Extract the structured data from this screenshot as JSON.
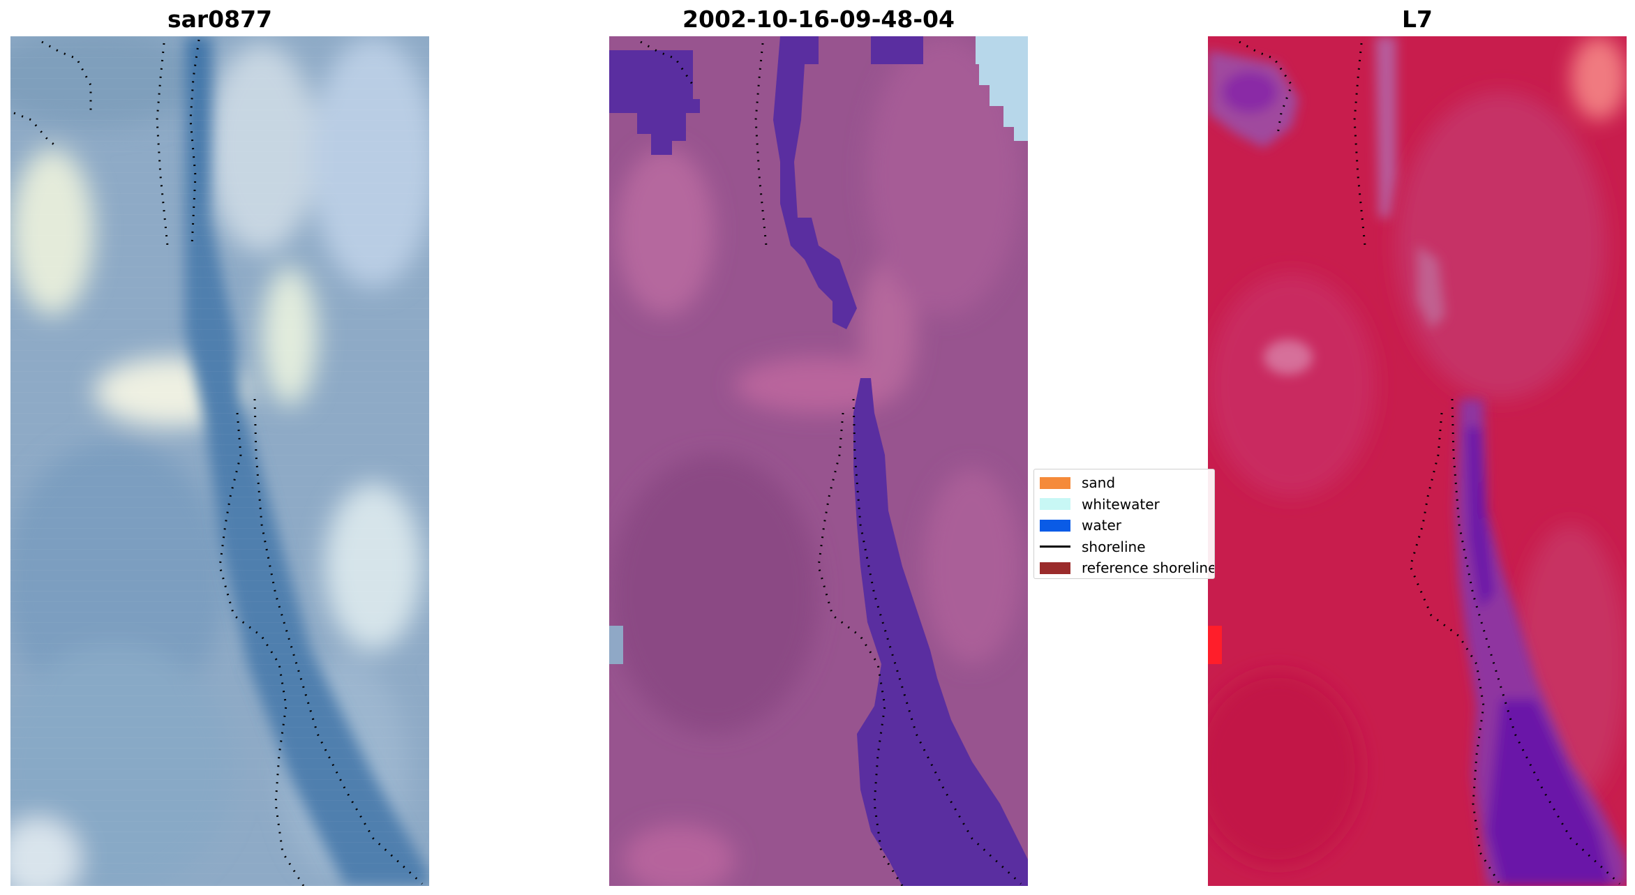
{
  "panels": [
    {
      "title": "sar0877",
      "kind": "rgb",
      "base": "#8faccb"
    },
    {
      "title": "2002-10-16-09-48-04",
      "kind": "classified",
      "base": "#9a5590"
    },
    {
      "title": "L7",
      "kind": "mndwi",
      "base": "#c81e4e"
    }
  ],
  "legend": {
    "items": [
      {
        "label": "sand",
        "type": "patch",
        "color": "#f58a3a"
      },
      {
        "label": "whitewater",
        "type": "patch",
        "color": "#c8f7f5"
      },
      {
        "label": "water",
        "type": "patch",
        "color": "#0a5be6"
      },
      {
        "label": "shoreline",
        "type": "line",
        "color": "#000000"
      },
      {
        "label": "reference shoreline",
        "type": "patch",
        "color": "#9a2b2b"
      }
    ]
  },
  "colors": {
    "water_class": "#5a2ea0",
    "sar_channel": "#4f7fae",
    "sar_sand": "#e6efe6",
    "classified_sand": "#b8669e",
    "l7_water": "#6a13a8",
    "l7_land": "#c81e4e"
  }
}
